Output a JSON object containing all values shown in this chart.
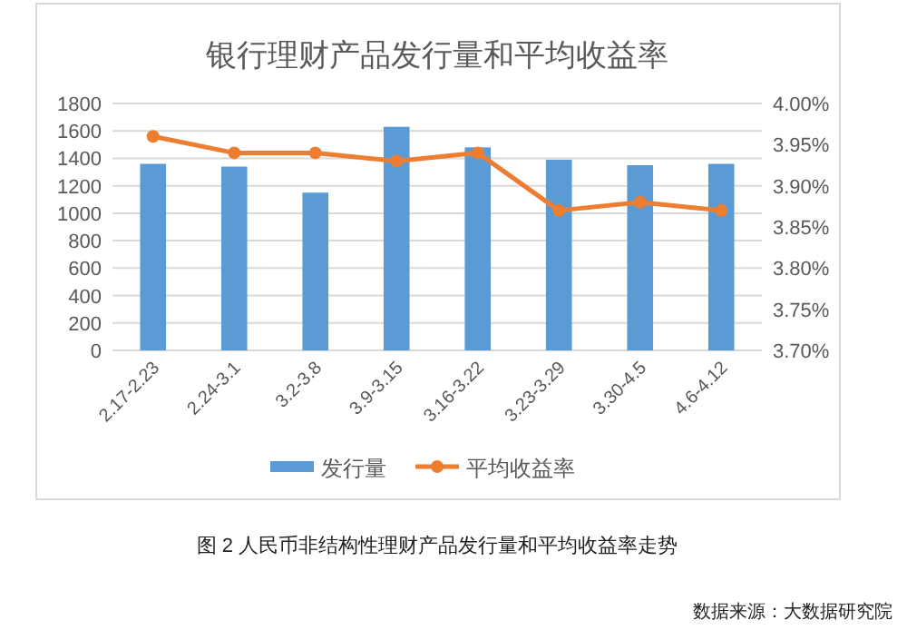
{
  "chart_data": {
    "type": "bar",
    "title": "银行理财产品发行量和平均收益率",
    "categories": [
      "2.17-2.23",
      "2.24-3.1",
      "3.2-3.8",
      "3.9-3.15",
      "3.16-3.22",
      "3.23-3.29",
      "3.30-4.5",
      "4.6-4.12"
    ],
    "series": [
      {
        "name": "发行量",
        "color": "#5b9bd5",
        "values": [
          1360,
          1340,
          1150,
          1630,
          1480,
          1390,
          1350,
          1360
        ]
      },
      {
        "name": "平均收益率",
        "type": "line",
        "axis": "y2",
        "color": "#ed7d31",
        "marker": "circle",
        "values": [
          3.96,
          3.94,
          3.94,
          3.93,
          3.94,
          3.87,
          3.88,
          3.87
        ]
      }
    ],
    "ylim": [
      0,
      1800
    ],
    "yticks": [
      0,
      200,
      400,
      600,
      800,
      1000,
      1200,
      1400,
      1600,
      1800
    ],
    "y2lim": [
      3.7,
      4.0
    ],
    "y2ticks": [
      {
        "value": 3.7,
        "label": "3.70%"
      },
      {
        "value": 3.75,
        "label": "3.75%"
      },
      {
        "value": 3.8,
        "label": "3.80%"
      },
      {
        "value": 3.85,
        "label": "3.85%"
      },
      {
        "value": 3.9,
        "label": "3.90%"
      },
      {
        "value": 3.95,
        "label": "3.95%"
      },
      {
        "value": 4.0,
        "label": "4.00%"
      }
    ],
    "grid": "y",
    "legend": "bottom",
    "annotations": [
      "图 2 人民币非结构性理财产品发行量和平均收益率走势",
      "数据来源：大数据研究院"
    ]
  }
}
